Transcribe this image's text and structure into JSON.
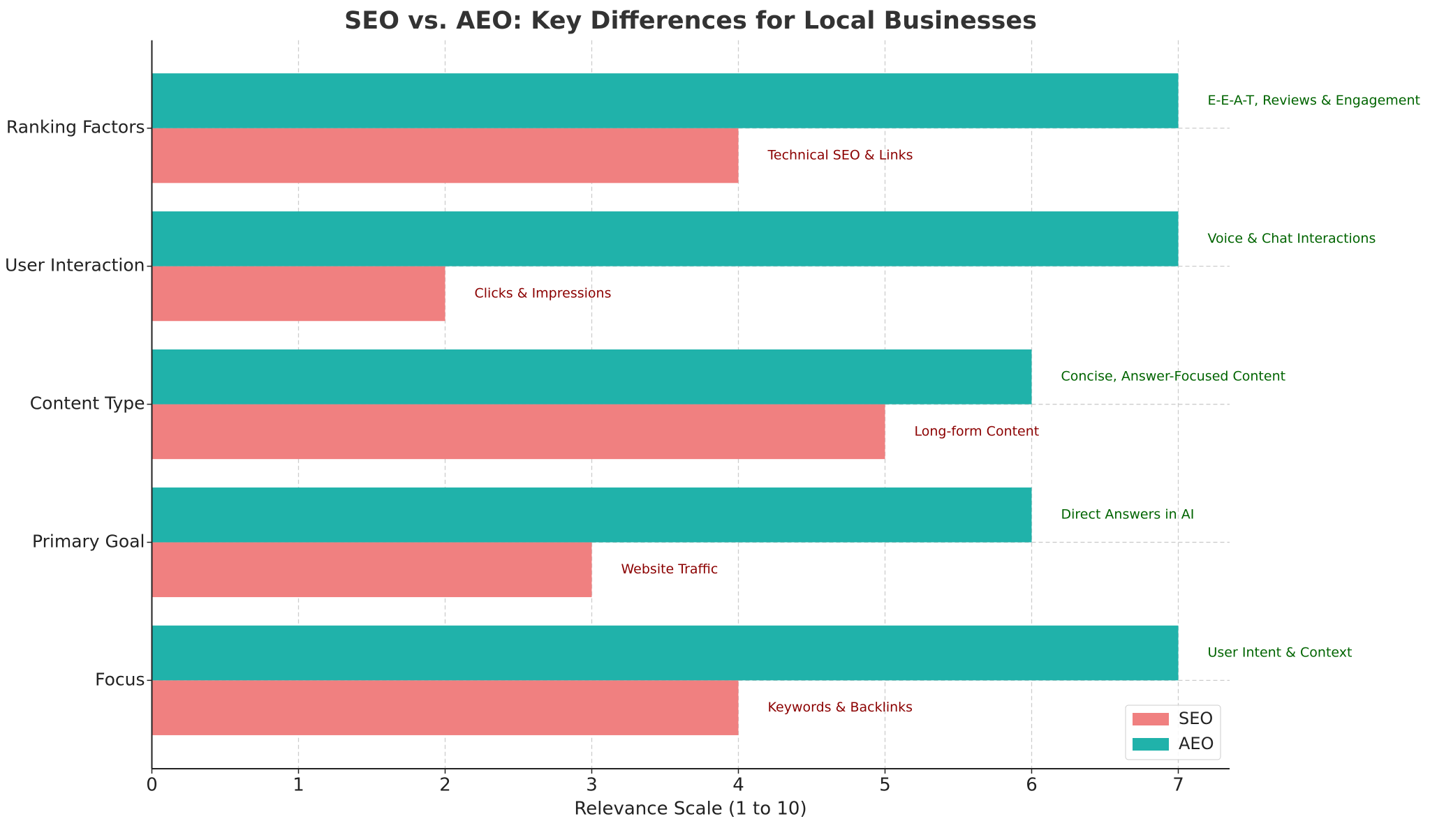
{
  "chart_data": {
    "type": "barh",
    "title": "SEO vs. AEO: Key Differences for Local Businesses",
    "xlabel": "Relevance Scale (1 to 10)",
    "categories": [
      "Focus",
      "Primary Goal",
      "Content Type",
      "User Interaction",
      "Ranking Factors"
    ],
    "series": [
      {
        "name": "SEO",
        "color": "#f08080",
        "label_color": "#8b0000",
        "values": [
          4,
          3,
          5,
          2,
          4
        ],
        "labels": [
          "Keywords & Backlinks",
          "Website Traffic",
          "Long-form Content",
          "Clicks & Impressions",
          "Technical SEO & Links"
        ]
      },
      {
        "name": "AEO",
        "color": "#20b2aa",
        "label_color": "#006400",
        "values": [
          7,
          6,
          6,
          7,
          7
        ],
        "labels": [
          "User Intent & Context",
          "Direct Answers in AI",
          "Concise, Answer-Focused Content",
          "Voice & Chat Interactions",
          "E-E-A-T, Reviews & Engagement"
        ]
      }
    ],
    "xlim": [
      0,
      7.35
    ],
    "xticks": [
      0,
      1,
      2,
      3,
      4,
      5,
      6,
      7
    ],
    "grid": true,
    "legend": "lower right"
  }
}
